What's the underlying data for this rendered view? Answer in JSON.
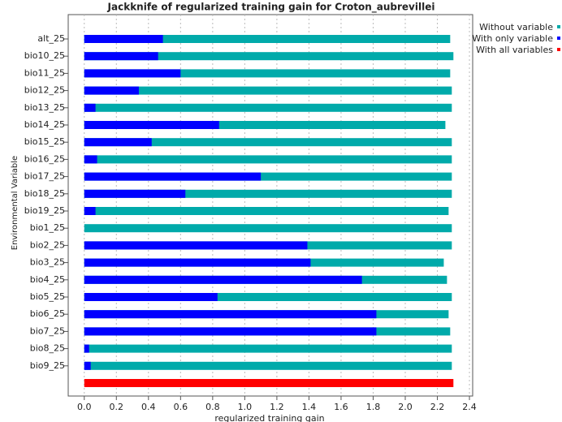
{
  "chart_data": {
    "type": "bar",
    "orientation": "horizontal",
    "title": "Jackknife of regularized training gain for Croton_aubrevillei",
    "x_label": "regularized training gain",
    "y_label": "Environmental Variable",
    "categories": [
      "alt_25",
      "bio10_25",
      "bio11_25",
      "bio12_25",
      "bio13_25",
      "bio14_25",
      "bio15_25",
      "bio16_25",
      "bio17_25",
      "bio18_25",
      "bio19_25",
      "bio1_25",
      "bio2_25",
      "bio3_25",
      "bio4_25",
      "bio5_25",
      "bio6_25",
      "bio7_25",
      "bio8_25",
      "bio9_25",
      null
    ],
    "series": [
      {
        "name": "Without variable",
        "color": "#00aaaa",
        "values": [
          2.28,
          2.3,
          2.28,
          2.29,
          2.29,
          2.25,
          2.29,
          2.29,
          2.29,
          2.29,
          2.27,
          2.29,
          2.29,
          2.24,
          2.26,
          2.29,
          2.27,
          2.28,
          2.29,
          2.29,
          null
        ]
      },
      {
        "name": "With only variable",
        "color": "#0000ff",
        "values": [
          0.49,
          0.46,
          0.6,
          0.34,
          0.07,
          0.84,
          0.42,
          0.08,
          1.1,
          0.63,
          0.07,
          0,
          1.39,
          1.41,
          1.73,
          0.83,
          1.82,
          1.82,
          0.03,
          0.04,
          null
        ]
      },
      {
        "name": "With all variables",
        "color": "#ff0000",
        "values": [
          null,
          null,
          null,
          null,
          null,
          null,
          null,
          null,
          null,
          null,
          null,
          null,
          null,
          null,
          null,
          null,
          null,
          null,
          null,
          null,
          2.3
        ]
      }
    ],
    "xlim": [
      -0.1,
      2.42
    ],
    "xticks": [
      {
        "value": 0,
        "label": "0.0"
      },
      0.2,
      0.4,
      0.6,
      0.8,
      {
        "value": 1,
        "label": "1.0"
      },
      1.2,
      1.4,
      1.6,
      1.8,
      {
        "value": 2,
        "label": "2.0"
      },
      2.2,
      2.4
    ],
    "grid": true,
    "legend": "top-right"
  }
}
